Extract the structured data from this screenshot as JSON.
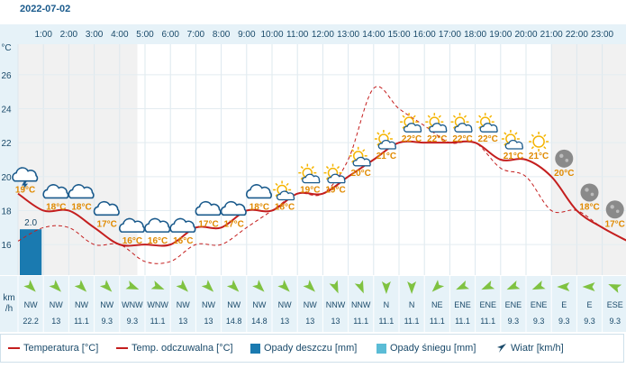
{
  "date": "2022-07-02",
  "y_unit": "°C",
  "wind_label": "km\n/h",
  "chart_data": {
    "type": "line",
    "x": [
      "1:00",
      "2:00",
      "3:00",
      "4:00",
      "5:00",
      "6:00",
      "7:00",
      "8:00",
      "9:00",
      "10:00",
      "11:00",
      "12:00",
      "13:00",
      "14:00",
      "15:00",
      "16:00",
      "17:00",
      "18:00",
      "19:00",
      "20:00",
      "21:00",
      "22:00",
      "23:00"
    ],
    "y_ticks": [
      16,
      18,
      20,
      22,
      24,
      26
    ],
    "ylim": [
      14.2,
      27.8
    ],
    "series": [
      {
        "name": "Temperatura [°C]",
        "color": "#c41e1e",
        "style": "solid",
        "points": [
          [
            0,
            19
          ],
          [
            1,
            18
          ],
          [
            2,
            18
          ],
          [
            3,
            17
          ],
          [
            4,
            16
          ],
          [
            5,
            16
          ],
          [
            6,
            16
          ],
          [
            7,
            17
          ],
          [
            8,
            17
          ],
          [
            9,
            18
          ],
          [
            10,
            18
          ],
          [
            11,
            19
          ],
          [
            12,
            19
          ],
          [
            13,
            20
          ],
          [
            14,
            21
          ],
          [
            15,
            22
          ],
          [
            16,
            22
          ],
          [
            17,
            22
          ],
          [
            18,
            22
          ],
          [
            19,
            21
          ],
          [
            20,
            21
          ],
          [
            21,
            20
          ],
          [
            22,
            18
          ],
          [
            23,
            17
          ],
          [
            24,
            16.2
          ]
        ]
      },
      {
        "name": "Temp. odczuwalna [°C]",
        "color": "#c41e1e",
        "style": "dashed",
        "points": [
          [
            0,
            16.2
          ],
          [
            1,
            17
          ],
          [
            2,
            17
          ],
          [
            3,
            16
          ],
          [
            4,
            16
          ],
          [
            5,
            15
          ],
          [
            6,
            15
          ],
          [
            7,
            16
          ],
          [
            8,
            16
          ],
          [
            9,
            17
          ],
          [
            10,
            18
          ],
          [
            11,
            19
          ],
          [
            12,
            19
          ],
          [
            13,
            21
          ],
          [
            14,
            25.2
          ],
          [
            15,
            24
          ],
          [
            16,
            23
          ],
          [
            17,
            22
          ],
          [
            18,
            22
          ],
          [
            19,
            20.5
          ],
          [
            20,
            20
          ],
          [
            21,
            18
          ],
          [
            22,
            18
          ],
          [
            23,
            17
          ],
          [
            24,
            16.2
          ]
        ]
      }
    ],
    "precip_rain": {
      "name": "Opady deszczu [mm]",
      "color": "#1a7ab0",
      "values": [
        2.0,
        0,
        0,
        0,
        0,
        0,
        0,
        0,
        0,
        0,
        0,
        0,
        0,
        0,
        0,
        0,
        0,
        0,
        0,
        0,
        0,
        0,
        0,
        0
      ]
    },
    "precip_snow": {
      "name": "Opady śniegu [mm]",
      "color": "#5bbcd6"
    },
    "hours": [
      {
        "icon": "thunder-cloud",
        "temp": "19°C"
      },
      {
        "icon": "cloud",
        "temp": "18°C"
      },
      {
        "icon": "cloud",
        "temp": "18°C"
      },
      {
        "icon": "cloud",
        "temp": "17°C"
      },
      {
        "icon": "cloud",
        "temp": "16°C"
      },
      {
        "icon": "cloud",
        "temp": "16°C"
      },
      {
        "icon": "cloud",
        "temp": "16°C"
      },
      {
        "icon": "cloud",
        "temp": "17°C"
      },
      {
        "icon": "cloud",
        "temp": "17°C"
      },
      {
        "icon": "cloud",
        "temp": "18°C"
      },
      {
        "icon": "sun-cloud",
        "temp": "18°C"
      },
      {
        "icon": "sun-cloud",
        "temp": "19°C"
      },
      {
        "icon": "sun-cloud",
        "temp": "19°C"
      },
      {
        "icon": "sun-cloud",
        "temp": "20°C"
      },
      {
        "icon": "sun-cloud",
        "temp": "21°C"
      },
      {
        "icon": "sun-cloud",
        "temp": "22°C"
      },
      {
        "icon": "sun-cloud",
        "temp": "22°C"
      },
      {
        "icon": "sun-cloud",
        "temp": "22°C"
      },
      {
        "icon": "sun-cloud",
        "temp": "22°C"
      },
      {
        "icon": "sun-cloud",
        "temp": "21°C"
      },
      {
        "icon": "sun",
        "temp": "21°C"
      },
      {
        "icon": "moon",
        "temp": "20°C"
      },
      {
        "icon": "moon",
        "temp": "18°C"
      },
      {
        "icon": "moon",
        "temp": "17°C"
      }
    ],
    "wind": [
      {
        "dir": "NW",
        "speed": "22.2",
        "deg": 315
      },
      {
        "dir": "NW",
        "speed": "13",
        "deg": 315
      },
      {
        "dir": "NW",
        "speed": "11.1",
        "deg": 315
      },
      {
        "dir": "NW",
        "speed": "9.3",
        "deg": 315
      },
      {
        "dir": "WNW",
        "speed": "9.3",
        "deg": 292
      },
      {
        "dir": "WNW",
        "speed": "11.1",
        "deg": 292
      },
      {
        "dir": "NW",
        "speed": "13",
        "deg": 315
      },
      {
        "dir": "NW",
        "speed": "13",
        "deg": 315
      },
      {
        "dir": "NW",
        "speed": "14.8",
        "deg": 315
      },
      {
        "dir": "NW",
        "speed": "14.8",
        "deg": 315
      },
      {
        "dir": "NW",
        "speed": "13",
        "deg": 315
      },
      {
        "dir": "NW",
        "speed": "13",
        "deg": 315
      },
      {
        "dir": "NNW",
        "speed": "13",
        "deg": 337
      },
      {
        "dir": "NNW",
        "speed": "11.1",
        "deg": 337
      },
      {
        "dir": "N",
        "speed": "11.1",
        "deg": 0
      },
      {
        "dir": "N",
        "speed": "11.1",
        "deg": 0
      },
      {
        "dir": "NE",
        "speed": "11.1",
        "deg": 45
      },
      {
        "dir": "ENE",
        "speed": "11.1",
        "deg": 67
      },
      {
        "dir": "ENE",
        "speed": "11.1",
        "deg": 67
      },
      {
        "dir": "ENE",
        "speed": "9.3",
        "deg": 67
      },
      {
        "dir": "ENE",
        "speed": "9.3",
        "deg": 67
      },
      {
        "dir": "E",
        "speed": "9.3",
        "deg": 90
      },
      {
        "dir": "E",
        "speed": "9.3",
        "deg": 90
      },
      {
        "dir": "ESE",
        "speed": "9.3",
        "deg": 112
      }
    ],
    "rain_label": "2.0"
  },
  "legend": {
    "temp": "Temperatura [°C]",
    "feel": "Temp. odczuwalna [°C]",
    "rain": "Opady deszczu [mm]",
    "snow": "Opady śniegu [mm]",
    "wind": "Wiatr [km/h]"
  },
  "colors": {
    "line": "#c41e1e",
    "text": "#1a4a6a",
    "temp_label": "#e08a00",
    "rain": "#1a7ab0",
    "snow": "#5bbcd6",
    "cloud": "#1a5a8c",
    "sun": "#f5b400",
    "wind_arrow": "#7fc241"
  }
}
